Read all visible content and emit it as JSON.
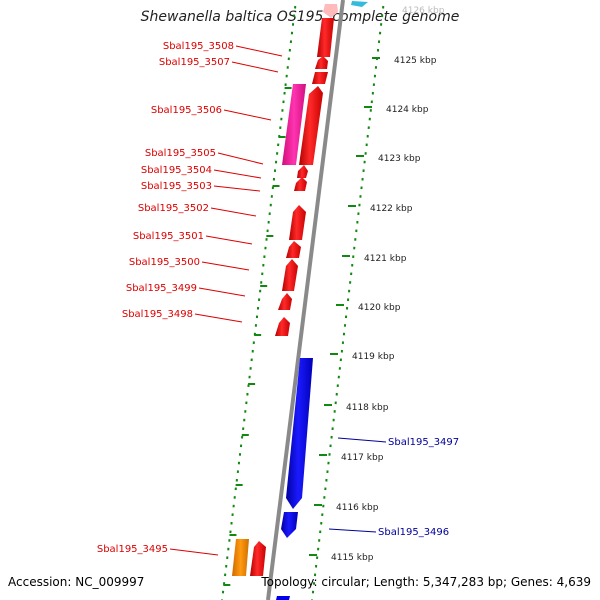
{
  "title": "Shewanella baltica OS195, complete genome",
  "footer": {
    "accession": "Accession: NC_009997",
    "summary": "Topology: circular; Length: 5,347,283 bp; Genes: 4,639"
  },
  "colors": {
    "forward_gene": "#ff0000",
    "reverse_gene": "#0000ee",
    "magenta_feature": "#ff22aa",
    "orange_feature": "#ff8800",
    "pink_feature": "#ffbbbb",
    "cyan_feature": "#33bbdd",
    "ruler_ticks": "#118811",
    "backbone": "#888888",
    "label_red": "#dd0000",
    "label_blue": "#000099"
  },
  "ruler": {
    "unit": "kbp",
    "labels": [
      "4126 kbp",
      "4125 kbp",
      "4124 kbp",
      "4123 kbp",
      "4122 kbp",
      "4121 kbp",
      "4120 kbp",
      "4119 kbp",
      "4118 kbp",
      "4117 kbp",
      "4116 kbp",
      "4115 kbp"
    ],
    "positions_kbp": [
      4126,
      4125,
      4124,
      4123,
      4122,
      4121,
      4120,
      4119,
      4118,
      4117,
      4116,
      4115
    ]
  },
  "gene_labels": {
    "forward": [
      "Sbal195_3508",
      "Sbal195_3507",
      "Sbal195_3506",
      "Sbal195_3505",
      "Sbal195_3504",
      "Sbal195_3503",
      "Sbal195_3502",
      "Sbal195_3501",
      "Sbal195_3500",
      "Sbal195_3499",
      "Sbal195_3498",
      "Sbal195_3495"
    ],
    "reverse": [
      "Sbal195_3497",
      "Sbal195_3496"
    ]
  }
}
